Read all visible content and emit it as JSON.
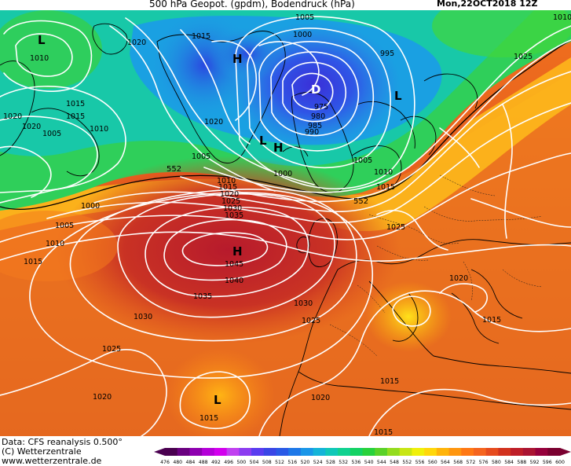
{
  "header": {
    "title": "500 hPa Geopot. (gpdm), Bodendruck (hPa)",
    "datestamp": "Mon,22OCT2018 12Z"
  },
  "footer": {
    "source": "Data: CFS reanalysis 0.500°",
    "copyright": "(C) Wetterzentrale",
    "website": "www.wetterzentrale.de"
  },
  "colors": {
    "isobar": "#ffffff",
    "coastline": "#000000",
    "background": "#ffffff"
  },
  "colorbar": {
    "ticks": [
      "476",
      "480",
      "484",
      "488",
      "492",
      "496",
      "500",
      "504",
      "508",
      "512",
      "516",
      "520",
      "524",
      "528",
      "532",
      "536",
      "540",
      "544",
      "548",
      "552",
      "556",
      "560",
      "564",
      "568",
      "572",
      "576",
      "580",
      "584",
      "588",
      "592",
      "596",
      "600"
    ],
    "colors": [
      "#4a0050",
      "#6a0080",
      "#8e00b0",
      "#b400d8",
      "#d200ee",
      "#c040f0",
      "#8c3cf0",
      "#5a3cf0",
      "#3a46e6",
      "#2a5ae6",
      "#1e78e8",
      "#1a96e8",
      "#14b4d8",
      "#10c8b8",
      "#10d290",
      "#14d264",
      "#28d23c",
      "#5ad228",
      "#94dc1e",
      "#c8e614",
      "#f0f00a",
      "#ffd70a",
      "#ffb40a",
      "#ff960f",
      "#ff7814",
      "#f5641e",
      "#e64b1e",
      "#d2321e",
      "#be1e28",
      "#aa1432",
      "#96003c",
      "#7a0030"
    ]
  },
  "map": {
    "pressure_labels": [
      "1010",
      "1005",
      "1000",
      "995",
      "985",
      "980",
      "975",
      "990",
      "1015",
      "1020",
      "1025",
      "1030",
      "1035",
      "1040",
      "1045"
    ],
    "pressure_centers": [
      {
        "symbol": "L",
        "label": "1010"
      },
      {
        "symbol": "H"
      },
      {
        "symbol": "D"
      },
      {
        "symbol": "L"
      },
      {
        "symbol": "L"
      },
      {
        "symbol": "H"
      },
      {
        "symbol": "H",
        "label": "1045"
      },
      {
        "symbol": "L",
        "label": "1015"
      }
    ],
    "isobar_labels": [
      "1010",
      "1020",
      "1015",
      "1005",
      "1000",
      "995",
      "975",
      "980",
      "985",
      "990",
      "1020",
      "1015",
      "1010",
      "1005",
      "1020",
      "1010",
      "1005",
      "1000",
      "1005",
      "1010",
      "1015",
      "1000",
      "1005",
      "1010",
      "1015",
      "1010",
      "1015",
      "1020",
      "1025",
      "1030",
      "1035",
      "1040",
      "1035",
      "1030",
      "1030",
      "1025",
      "1025",
      "1020",
      "1025",
      "1015",
      "1020",
      "1015",
      "1020",
      "1015",
      "1015",
      "1025",
      "1020",
      "1015"
    ],
    "geopotential_labels": [
      "552",
      "552"
    ]
  }
}
